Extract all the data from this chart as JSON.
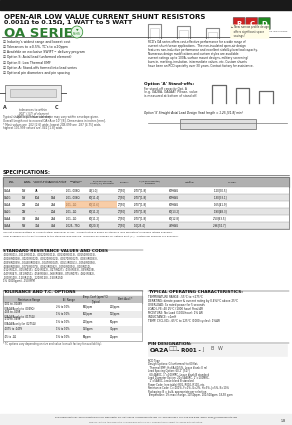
{
  "title_line1": "OPEN-AIR LOW VALUE CURRENT SHUNT RESISTORS",
  "title_line2": "0.001Ω to 0.15Ω, 1 WATT to 5 WATT",
  "series_name": "OA SERIES",
  "bg_color": "#ffffff",
  "green_color": "#2e7d32",
  "features": [
    "Industry's widest range and lowest cost",
    "Tolerances to ±0.5%, TC's to ±20ppm",
    "Available on exclusive SWIFT™ delivery program",
    "Option S: Axial lead (unformed element)",
    "Option E: Low Thermal EMF",
    "Option A: Stand-offs formed into lead series",
    "Optional pin diameters and pin spacing"
  ],
  "desc_lines": [
    "RCD's OA series offers cost-effective performance for a wide range of",
    "current shunt/sense applications.  The non-insulated open-air design",
    "features non-inductive performance and excellent stability/overload capacity.",
    "Numerous design modifications and custom styles are available:",
    "current ratings up to 100A, surface mount designs, military screening/",
    "burn-in, marking, insulation, intermediate values, etc. Custom shunts",
    "have been an RCD-specialty over 30 years. Contact factory for assistance."
  ],
  "rows": [
    [
      "OA1A",
      "1W",
      "4A",
      "-",
      ".001-.006Ω",
      "40[1.0]",
      "2\"[50]",
      ".070\"[1.8]",
      "60MWG",
      "1.20[30.5]"
    ],
    [
      "OA1G",
      "1W",
      "10A",
      "14A",
      ".001-.006Ω",
      "60[11.4]",
      "2\"[50]",
      ".070\"[1.8]",
      "60MWG",
      "1.30[33.1]"
    ],
    [
      "OA2A",
      "2W",
      "20A",
      "24A",
      ".001-.1Ω",
      "60[11.6]",
      "2\"[50]",
      ".070\"[1.8]",
      "60MWG",
      "1.65[41.9]"
    ],
    [
      "OA2G",
      "2W",
      "-",
      "20A",
      ".001-.1Ω",
      "60[11.2]",
      "2\"[50]",
      ".070\"[1.8]",
      "60[13.2]",
      "1.90[48.3]"
    ],
    [
      "OA4A",
      "3W",
      "26A",
      "24A",
      ".001-.1Ω",
      "60[11.2]",
      "2\"[50]",
      ".070\"[1.8]",
      "60[12.8]",
      "2.50[63.5]"
    ],
    [
      "OA5A",
      "5W",
      "32A",
      "40A",
      ".0025-.75Ω",
      "60[20.3]",
      "2\"[50]",
      "1.0[25.4]",
      "76MWG",
      "2.96[74.7]"
    ]
  ],
  "std_vals": [
    ".001(R001), .0011(R0011), .00120(R0012), .00130(R0013), .00150(R0015),",
    ".0018(R0018), .0020(R0020), .00220(R0022), .00270(R0027), .0033(R0033),",
    ".0039(R0039), .00430(R0043), .0047(R0047), .0051(R0051), .0056(R0056),",
    ".0068(R0068), .0075(R0075), .0082(R0082), .0091(R0091), .010(R010),",
    ".012(R012), .015(R015), .022(R022), .027(R027), .033(R033), .039(R039),",
    ".047(R047), .051(R051), .056(R056), .068(R068), .075(R075), .082(R082),",
    ".100(R100), .110(R110), .120(R120), .150(R150)",
    "1% (1000ppm), .150 RPM"
  ],
  "tol_rows": [
    [
      ".001 to .00499\n(OA1A/A only to .0049Ω)",
      "2% to 10%",
      "900ppm",
      "200ppm"
    ],
    [
      ".005 to .0099\n(OA1A/A only to .0175Ω)",
      "1% to 10%",
      "600ppm",
      "100ppm"
    ],
    [
      ".010 to .0499\n(OA1A/A-only for .0275Ω)",
      "1% to 10%",
      "200ppm",
      "50ppm"
    ],
    [
      ".0075 to .0499",
      "1% to 10%",
      "150ppm",
      "30ppm"
    ],
    [
      ".05 to .1Ω",
      "1% to 10%",
      "90ppm",
      "20ppm"
    ]
  ],
  "typ_lines": [
    "TEMPERATURE RANGE: -55°C to +275°C",
    "DERATING: derate power & current rating by 0.4%/°C above 25°C",
    "OVERLOAD: 3x rated power for 5 seconds",
    "LOAD LIFE: 40 25°C (1000 hour) Final ΔR",
    "MOISTURE: No Load (1000/hour): 1% ΔR",
    "INDUCTANCE: <1mH",
    "TEMP. CYCLING: -65°C to 125°C (1000 cycles): 1%ΔR"
  ],
  "pin_lines": [
    "RCD Type",
    "Design Options: G (unformed) to 60 flat,",
    "  Thermal EMF: H=6A-60/5%, Leave blank: E ml",
    "Lead Spacing Option: 60-2\" [51?]",
    "  60-4A80C, 1\"=100MRC, Leave blank B standard",
    "Lead Diameter Option: 20=5A60RC, 1\"=100MRC,",
    "  1\"=5A80C, Leave blank B standard",
    "Power Code: (see table) R01, R010, R100, etc.",
    "Resistance Code: C=.001%, F=1%, G=2%, H=3%, J=5%, K=10%",
    "Packaging: B = bulk, appropriate per selection",
    "Temperature: 1% max change, 10-50ppm, 100-500ppm, 1K-5K ppm"
  ],
  "footer": "RCD Components Inc. 520 E Industrial Park Dr. Manchester NH, USA 03109  rcdcomponents.com  Tel: 603-669-0054  Fax: 603-669-5455  Email: sales@rcdcomponents.com"
}
